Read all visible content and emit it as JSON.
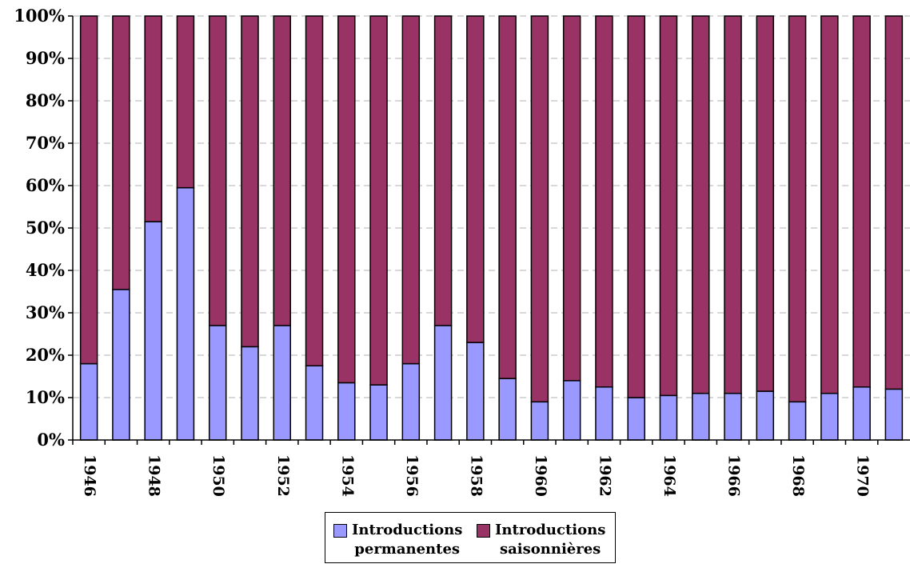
{
  "chart_data": {
    "type": "bar",
    "stacked": true,
    "percent_stacked": true,
    "categories": [
      "1946",
      "1947",
      "1948",
      "1949",
      "1950",
      "1951",
      "1952",
      "1953",
      "1954",
      "1955",
      "1956",
      "1957",
      "1958",
      "1959",
      "1960",
      "1961",
      "1962",
      "1963",
      "1964",
      "1965",
      "1966",
      "1967",
      "1968",
      "1969",
      "1970",
      "1971"
    ],
    "tick_labels": [
      "1946",
      "1948",
      "1950",
      "1952",
      "1954",
      "1956",
      "1958",
      "1960",
      "1962",
      "1964",
      "1966",
      "1968",
      "1970"
    ],
    "series": [
      {
        "name": "Introductions permanentes",
        "color": "#9999FF",
        "values": [
          18,
          35.5,
          51.5,
          59.5,
          27,
          22,
          27,
          17.5,
          13.5,
          13,
          18,
          27,
          23,
          14.5,
          9,
          14,
          12.5,
          10,
          10.5,
          11,
          11,
          11.5,
          9,
          11,
          12.5,
          12
        ]
      },
      {
        "name": "Introductions saisonnières",
        "color": "#993366",
        "values": [
          82,
          64.5,
          48.5,
          40.5,
          73,
          78,
          73,
          82.5,
          86.5,
          87,
          82,
          73,
          77,
          85.5,
          91,
          86,
          87.5,
          90,
          89.5,
          89,
          89,
          88.5,
          91,
          89,
          87.5,
          88
        ]
      }
    ],
    "y_ticks": [
      "0%",
      "10%",
      "20%",
      "30%",
      "40%",
      "50%",
      "60%",
      "70%",
      "80%",
      "90%",
      "100%"
    ],
    "ylim": [
      0,
      100
    ],
    "grid": true,
    "legend_position": "bottom",
    "legend": [
      {
        "line1": "Introductions",
        "line2": "permanentes",
        "color": "#9999FF"
      },
      {
        "line1": "Introductions",
        "line2": "saisonnières",
        "color": "#993366"
      }
    ]
  }
}
